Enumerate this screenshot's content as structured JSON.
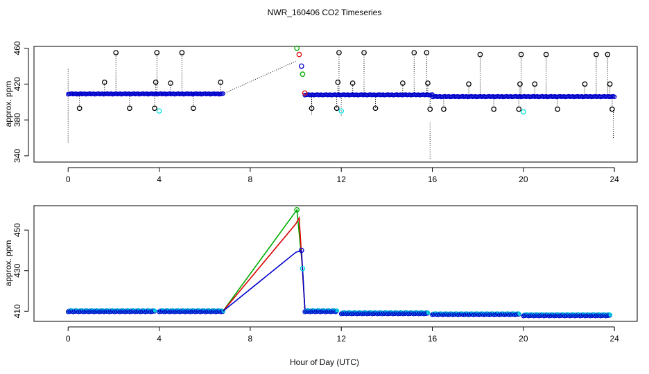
{
  "chart_data": [
    {
      "type": "scatter",
      "title": "NWR_160406  CO2 Timeseries",
      "xlabel": "",
      "ylabel": "approx. ppm",
      "xlim": [
        -1.5,
        25
      ],
      "ylim": [
        333,
        462
      ],
      "x_ticks": [
        0,
        4,
        8,
        12,
        16,
        20,
        24
      ],
      "y_ticks": [
        340,
        380,
        420,
        460
      ],
      "colors": {
        "black": "#000000",
        "blue": "#0000cc",
        "cyan": "#00e0e0",
        "red": "#dd0000",
        "green": "#00aa00",
        "orange": "#cc8800"
      },
      "series": [
        {
          "name": "baseline segments",
          "color": "#0000cc",
          "segments": [
            {
              "x_start": 0.0,
              "x_end": 6.8,
              "y": 409
            },
            {
              "x_start": 10.4,
              "x_end": 16.0,
              "y": 408
            },
            {
              "x_start": 16.0,
              "x_end": 24.0,
              "y": 406
            }
          ]
        },
        {
          "name": "spikes",
          "color": "#000000",
          "points": [
            {
              "x": 0.5,
              "y": 393
            },
            {
              "x": 1.6,
              "y": 422
            },
            {
              "x": 2.1,
              "y": 455
            },
            {
              "x": 2.7,
              "y": 393
            },
            {
              "x": 3.8,
              "y": 393
            },
            {
              "x": 3.85,
              "y": 422
            },
            {
              "x": 3.9,
              "y": 455
            },
            {
              "x": 4.5,
              "y": 421
            },
            {
              "x": 5.0,
              "y": 455
            },
            {
              "x": 5.5,
              "y": 393
            },
            {
              "x": 6.7,
              "y": 422
            },
            {
              "x": 10.7,
              "y": 393
            },
            {
              "x": 11.8,
              "y": 393
            },
            {
              "x": 11.85,
              "y": 422
            },
            {
              "x": 11.9,
              "y": 455
            },
            {
              "x": 12.5,
              "y": 421
            },
            {
              "x": 13.0,
              "y": 455
            },
            {
              "x": 13.5,
              "y": 393
            },
            {
              "x": 14.7,
              "y": 421
            },
            {
              "x": 15.2,
              "y": 455
            },
            {
              "x": 15.75,
              "y": 455
            },
            {
              "x": 15.8,
              "y": 421
            },
            {
              "x": 15.9,
              "y": 392
            },
            {
              "x": 16.5,
              "y": 392
            },
            {
              "x": 17.6,
              "y": 420
            },
            {
              "x": 18.1,
              "y": 453
            },
            {
              "x": 18.7,
              "y": 392
            },
            {
              "x": 19.8,
              "y": 392
            },
            {
              "x": 19.85,
              "y": 420
            },
            {
              "x": 19.9,
              "y": 453
            },
            {
              "x": 20.5,
              "y": 420
            },
            {
              "x": 21.0,
              "y": 453
            },
            {
              "x": 21.5,
              "y": 392
            },
            {
              "x": 22.7,
              "y": 420
            },
            {
              "x": 23.2,
              "y": 453
            },
            {
              "x": 23.7,
              "y": 453
            },
            {
              "x": 23.8,
              "y": 420
            },
            {
              "x": 23.9,
              "y": 392
            }
          ]
        },
        {
          "name": "cyan outliers",
          "color": "#00e0e0",
          "points": [
            {
              "x": 4.0,
              "y": 390
            },
            {
              "x": 12.0,
              "y": 390
            },
            {
              "x": 20.0,
              "y": 389
            }
          ]
        },
        {
          "name": "plume",
          "points": [
            {
              "x": 10.05,
              "y": 460,
              "color": "#00aa00"
            },
            {
              "x": 10.15,
              "y": 453,
              "color": "#dd0000"
            },
            {
              "x": 10.25,
              "y": 440,
              "color": "#0000cc"
            },
            {
              "x": 10.3,
              "y": 431,
              "color": "#00aa00"
            },
            {
              "x": 10.4,
              "y": 410,
              "color": "#dd0000"
            }
          ]
        }
      ],
      "annotations": {
        "dotted_connector": [
          [
            6.8,
            409
          ],
          [
            10.05,
            446
          ]
        ]
      }
    },
    {
      "type": "scatter",
      "title": "",
      "xlabel": "Hour of Day (UTC)",
      "ylabel": "approx. ppm",
      "xlim": [
        -1.5,
        25
      ],
      "ylim": [
        405,
        462
      ],
      "x_ticks": [
        0,
        4,
        8,
        12,
        16,
        20,
        24
      ],
      "y_ticks": [
        410,
        430,
        450
      ],
      "series": [
        {
          "name": "blocks",
          "color": "#0000cc",
          "blocks": [
            {
              "x_start": 0.0,
              "x_end": 3.8,
              "y": 410
            },
            {
              "x_start": 4.0,
              "x_end": 6.8,
              "y": 410
            },
            {
              "x_start": 10.4,
              "x_end": 11.8,
              "y": 410
            },
            {
              "x_start": 12.0,
              "x_end": 15.8,
              "y": 409
            },
            {
              "x_start": 16.0,
              "x_end": 19.8,
              "y": 408.5
            },
            {
              "x_start": 20.0,
              "x_end": 23.8,
              "y": 408
            }
          ]
        },
        {
          "name": "green trace",
          "color": "#00aa00",
          "points": [
            {
              "x": 6.8,
              "y": 410
            },
            {
              "x": 10.05,
              "y": 460
            },
            {
              "x": 10.3,
              "y": 431
            },
            {
              "x": 10.4,
              "y": 411
            }
          ]
        },
        {
          "name": "red trace",
          "color": "#dd0000",
          "points": [
            {
              "x": 6.8,
              "y": 410
            },
            {
              "x": 10.0,
              "y": 453
            },
            {
              "x": 10.15,
              "y": 456
            },
            {
              "x": 10.4,
              "y": 411
            }
          ]
        },
        {
          "name": "blue trace",
          "color": "#0000cc",
          "points": [
            {
              "x": 6.8,
              "y": 410
            },
            {
              "x": 10.0,
              "y": 439
            },
            {
              "x": 10.25,
              "y": 440
            },
            {
              "x": 10.4,
              "y": 411
            }
          ]
        },
        {
          "name": "plume markers",
          "points": [
            {
              "x": 10.05,
              "y": 460,
              "color": "#00aa00"
            },
            {
              "x": 10.25,
              "y": 440,
              "color": "#0000cc"
            },
            {
              "x": 10.3,
              "y": 431,
              "color": "#00e0e0"
            }
          ]
        }
      ]
    }
  ]
}
